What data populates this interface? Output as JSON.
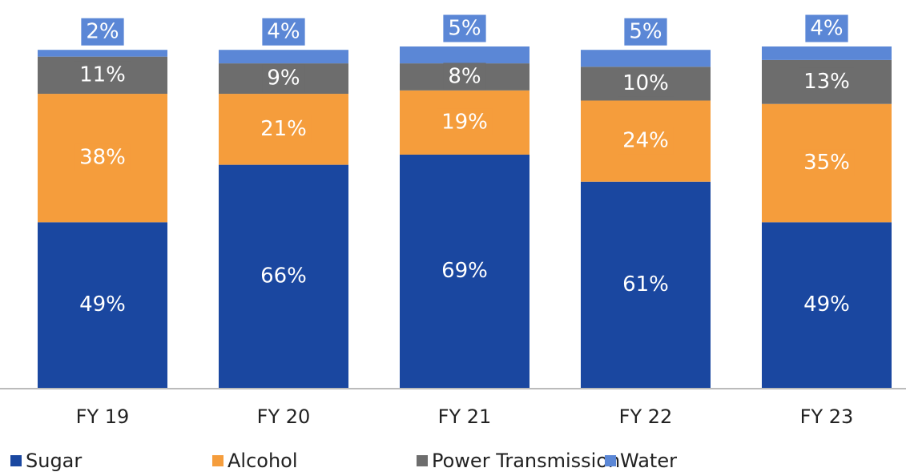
{
  "chart_data": {
    "type": "stacked_bar",
    "categories": [
      "FY 19",
      "FY 20",
      "FY 21",
      "FY 22",
      "FY 23"
    ],
    "series": [
      {
        "name": "Sugar",
        "color": "#1a47a0",
        "values": [
          49,
          66,
          69,
          61,
          49
        ],
        "value_labels": [
          "49%",
          "66%",
          "69%",
          "61%",
          "49%"
        ]
      },
      {
        "name": "Alcohol",
        "color": "#f59d3c",
        "values": [
          38,
          21,
          19,
          24,
          35
        ],
        "value_labels": [
          "38%",
          "21%",
          "19%",
          "24%",
          "35%"
        ]
      },
      {
        "name": "Power Transmission",
        "color": "#6d6d6d",
        "values": [
          11,
          9,
          8,
          10,
          13
        ],
        "value_labels": [
          "11%",
          "9%",
          "8%",
          "10%",
          "13%"
        ]
      },
      {
        "name": "Water",
        "color": "#5b87d6",
        "values": [
          2,
          4,
          5,
          5,
          4
        ],
        "value_labels": [
          "2%",
          "4%",
          "5%",
          "5%",
          "4%"
        ]
      }
    ],
    "legend": "bottom"
  }
}
